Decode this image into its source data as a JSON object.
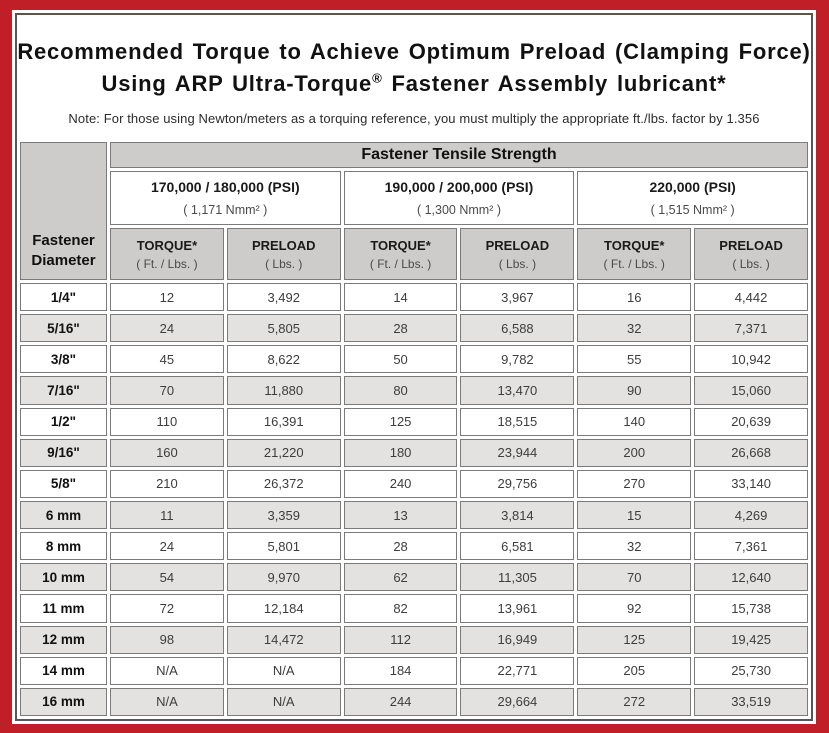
{
  "title": {
    "line1": "Recommended Torque to Achieve Optimum Preload (Clamping Force)",
    "line2_prefix": "Using ARP Ultra-Torque",
    "line2_sup": "®",
    "line2_suffix": " Fastener Assembly lubricant*",
    "note": "Note: For those using Newton/meters as a torquing reference, you must multiply the appropriate ft./lbs. factor by 1.356"
  },
  "table": {
    "corner_header": {
      "line1": "Fastener",
      "line2": "Diameter"
    },
    "group_header": "Fastener Tensile Strength",
    "strength_groups": [
      {
        "psi": "170,000 / 180,000 (PSI)",
        "nmm": "( 1,171 Nmm² )"
      },
      {
        "psi": "190,000 / 200,000 (PSI)",
        "nmm": "( 1,300 Nmm² )"
      },
      {
        "psi": "220,000 (PSI)",
        "nmm": "( 1,515 Nmm² )"
      }
    ],
    "column_headers": [
      {
        "label": "TORQUE*",
        "unit": "( Ft. / Lbs. )"
      },
      {
        "label": "PRELOAD",
        "unit": "( Lbs. )"
      },
      {
        "label": "TORQUE*",
        "unit": "( Ft. / Lbs. )"
      },
      {
        "label": "PRELOAD",
        "unit": "( Lbs. )"
      },
      {
        "label": "TORQUE*",
        "unit": "( Ft. / Lbs. )"
      },
      {
        "label": "PRELOAD",
        "unit": "( Lbs. )"
      }
    ],
    "rows": [
      {
        "diameter": "1/4\"",
        "values": [
          "12",
          "3,492",
          "14",
          "3,967",
          "16",
          "4,442"
        ]
      },
      {
        "diameter": "5/16\"",
        "values": [
          "24",
          "5,805",
          "28",
          "6,588",
          "32",
          "7,371"
        ]
      },
      {
        "diameter": "3/8\"",
        "values": [
          "45",
          "8,622",
          "50",
          "9,782",
          "55",
          "10,942"
        ]
      },
      {
        "diameter": "7/16\"",
        "values": [
          "70",
          "11,880",
          "80",
          "13,470",
          "90",
          "15,060"
        ]
      },
      {
        "diameter": "1/2\"",
        "values": [
          "110",
          "16,391",
          "125",
          "18,515",
          "140",
          "20,639"
        ]
      },
      {
        "diameter": "9/16\"",
        "values": [
          "160",
          "21,220",
          "180",
          "23,944",
          "200",
          "26,668"
        ]
      },
      {
        "diameter": "5/8\"",
        "values": [
          "210",
          "26,372",
          "240",
          "29,756",
          "270",
          "33,140"
        ]
      },
      {
        "diameter": "6 mm",
        "values": [
          "11",
          "3,359",
          "13",
          "3,814",
          "15",
          "4,269"
        ]
      },
      {
        "diameter": "8 mm",
        "values": [
          "24",
          "5,801",
          "28",
          "6,581",
          "32",
          "7,361"
        ]
      },
      {
        "diameter": "10 mm",
        "values": [
          "54",
          "9,970",
          "62",
          "11,305",
          "70",
          "12,640"
        ]
      },
      {
        "diameter": "11 mm",
        "values": [
          "72",
          "12,184",
          "82",
          "13,961",
          "92",
          "15,738"
        ]
      },
      {
        "diameter": "12 mm",
        "values": [
          "98",
          "14,472",
          "112",
          "16,949",
          "125",
          "19,425"
        ]
      },
      {
        "diameter": "14 mm",
        "values": [
          "N/A",
          "N/A",
          "184",
          "22,771",
          "205",
          "25,730"
        ]
      },
      {
        "diameter": "16 mm",
        "values": [
          "N/A",
          "N/A",
          "244",
          "29,664",
          "272",
          "33,519"
        ]
      }
    ]
  },
  "colors": {
    "frame_red": "#c01f27",
    "sheet_border": "#55555a",
    "header_gray": "#cdccca",
    "alt_row_gray": "#e3e2e0",
    "cell_border": "#7b7b7b",
    "value_text": "#3d3d3d"
  }
}
